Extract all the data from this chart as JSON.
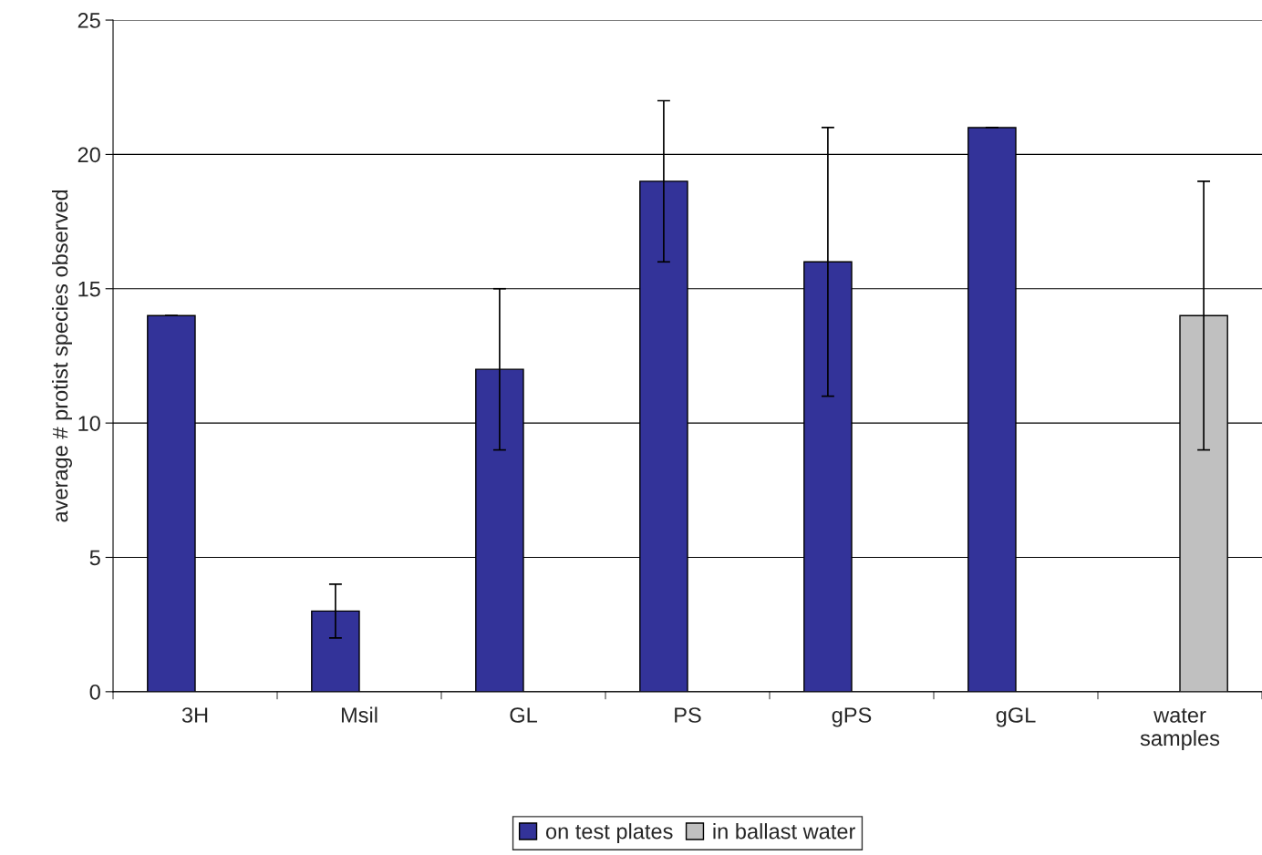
{
  "chart_data": {
    "type": "bar",
    "ylabel": "average # protist species observed",
    "categories": [
      "3H",
      "Msil",
      "GL",
      "PS",
      "gPS",
      "gGL",
      "water\nsamples"
    ],
    "series": [
      {
        "name": "on test plates",
        "color": "#333399",
        "values": [
          14,
          3,
          12,
          19,
          16,
          21,
          null
        ],
        "errors": [
          0,
          1,
          3,
          3,
          5,
          0,
          null
        ]
      },
      {
        "name": "in ballast water",
        "color": "#c0c0c0",
        "values": [
          null,
          null,
          null,
          null,
          null,
          null,
          14
        ],
        "errors": [
          null,
          null,
          null,
          null,
          null,
          null,
          5
        ]
      }
    ],
    "ylim": [
      0,
      25
    ],
    "yticks": [
      0,
      5,
      10,
      15,
      20,
      25
    ],
    "grid": "y",
    "legend": "bottom"
  }
}
